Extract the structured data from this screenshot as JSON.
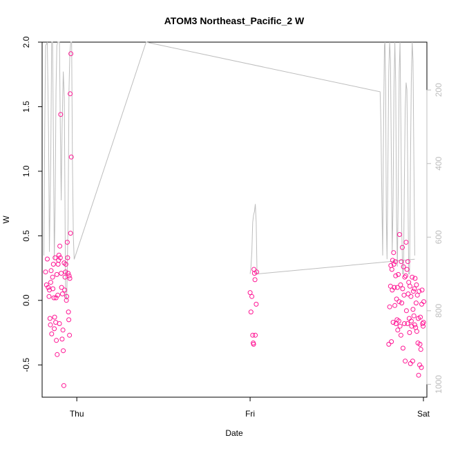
{
  "chart_data": {
    "type": "scatter",
    "title": "ATOM3 Northeast_Pacific_2 W",
    "xlabel": "Date",
    "ylabel": "W",
    "x_ticks": [
      "Thu",
      "Fri",
      "Sat"
    ],
    "x_range_days": [
      -0.2,
      2.02
    ],
    "ylim": [
      -0.75,
      2.0
    ],
    "y_ticks": [
      -0.5,
      0.0,
      0.5,
      1.0,
      1.5,
      2.0
    ],
    "y_tick_labels": [
      "-0.5",
      "0.0",
      "0.5",
      "1.0",
      "1.5",
      "2.0"
    ],
    "right_axis": {
      "ticks": [
        200,
        400,
        600,
        800,
        1000
      ],
      "tick_labels": [
        "200",
        "400",
        "600",
        "800",
        "1000"
      ],
      "range": [
        70,
        1035
      ],
      "inverted": true
    },
    "grid": false,
    "colors": {
      "points": "#ff1493",
      "depth_line": "#bdbdbd",
      "axis": "#000000",
      "right_axis": "#bdbdbd"
    },
    "series": [
      {
        "kind": "points",
        "points": [
          [
            -0.18,
            0.22
          ],
          [
            -0.175,
            0.12
          ],
          [
            -0.17,
            0.32
          ],
          [
            -0.165,
            0.1
          ],
          [
            -0.16,
            0.03
          ],
          [
            -0.158,
            0.08
          ],
          [
            -0.155,
            -0.14
          ],
          [
            -0.152,
            -0.19
          ],
          [
            -0.15,
            0.14
          ],
          [
            -0.148,
            0.23
          ],
          [
            -0.145,
            -0.26
          ],
          [
            -0.14,
            0.18
          ],
          [
            -0.138,
            0.09
          ],
          [
            -0.135,
            0.28
          ],
          [
            -0.132,
            0.02
          ],
          [
            -0.13,
            -0.22
          ],
          [
            -0.128,
            -0.13
          ],
          [
            -0.125,
            0.33
          ],
          [
            -0.122,
            -0.17
          ],
          [
            -0.12,
            0.02
          ],
          [
            -0.118,
            -0.31
          ],
          [
            -0.115,
            0.2
          ],
          [
            -0.113,
            -0.42
          ],
          [
            -0.11,
            0.04
          ],
          [
            -0.108,
            0.28
          ],
          [
            -0.105,
            0.31
          ],
          [
            -0.103,
            0.35
          ],
          [
            -0.1,
            -0.18
          ],
          [
            -0.098,
            0.42
          ],
          [
            -0.095,
            0.33
          ],
          [
            -0.093,
            1.44
          ],
          [
            -0.09,
            0.21
          ],
          [
            -0.088,
            0.1
          ],
          [
            -0.085,
            -0.3
          ],
          [
            -0.083,
            0.05
          ],
          [
            -0.08,
            -0.23
          ],
          [
            -0.078,
            -0.39
          ],
          [
            -0.075,
            -0.66
          ],
          [
            -0.073,
            0.29
          ],
          [
            -0.07,
            0.08
          ],
          [
            -0.068,
            0.18
          ],
          [
            -0.065,
            0.22
          ],
          [
            -0.063,
            0.28
          ],
          [
            -0.06,
            0.0
          ],
          [
            -0.058,
            0.03
          ],
          [
            -0.055,
            0.45
          ],
          [
            -0.053,
            0.33
          ],
          [
            -0.05,
            0.21
          ],
          [
            -0.048,
            -0.09
          ],
          [
            -0.046,
            -0.15
          ],
          [
            -0.044,
            0.19
          ],
          [
            -0.042,
            -0.27
          ],
          [
            -0.04,
            0.17
          ],
          [
            -0.038,
            1.6
          ],
          [
            -0.036,
            0.52
          ],
          [
            -0.034,
            1.91
          ],
          [
            -0.032,
            1.11
          ],
          [
            1.0,
            0.06
          ],
          [
            1.005,
            -0.09
          ],
          [
            1.01,
            0.03
          ],
          [
            1.015,
            -0.27
          ],
          [
            1.018,
            -0.33
          ],
          [
            1.02,
            -0.34
          ],
          [
            1.022,
            0.24
          ],
          [
            1.025,
            0.21
          ],
          [
            1.028,
            0.16
          ],
          [
            1.03,
            -0.27
          ],
          [
            1.035,
            -0.03
          ],
          [
            1.038,
            0.22
          ],
          [
            1.8,
            -0.34
          ],
          [
            1.805,
            -0.05
          ],
          [
            1.81,
            0.11
          ],
          [
            1.812,
            0.27
          ],
          [
            1.815,
            -0.32
          ],
          [
            1.818,
            0.24
          ],
          [
            1.82,
            0.08
          ],
          [
            1.822,
            0.31
          ],
          [
            1.825,
            -0.17
          ],
          [
            1.828,
            0.37
          ],
          [
            1.83,
            0.28
          ],
          [
            1.832,
            0.1
          ],
          [
            1.835,
            -0.04
          ],
          [
            1.838,
            0.3
          ],
          [
            1.84,
            0.19
          ],
          [
            1.842,
            -0.18
          ],
          [
            1.845,
            0.01
          ],
          [
            1.848,
            -0.15
          ],
          [
            1.85,
            0.1
          ],
          [
            1.852,
            -0.23
          ],
          [
            1.855,
            0.2
          ],
          [
            1.858,
            -0.16
          ],
          [
            1.86,
            -0.01
          ],
          [
            1.862,
            0.51
          ],
          [
            1.865,
            -0.2
          ],
          [
            1.868,
            0.12
          ],
          [
            1.87,
            -0.27
          ],
          [
            1.872,
            0.3
          ],
          [
            1.875,
            -0.02
          ],
          [
            1.878,
            0.41
          ],
          [
            1.88,
            0.09
          ],
          [
            1.882,
            -0.37
          ],
          [
            1.885,
            0.26
          ],
          [
            1.888,
            0.04
          ],
          [
            1.89,
            -0.18
          ],
          [
            1.892,
            0.18
          ],
          [
            1.895,
            -0.47
          ],
          [
            1.898,
            0.19
          ],
          [
            1.9,
            0.45
          ],
          [
            1.902,
            -0.08
          ],
          [
            1.905,
            0.24
          ],
          [
            1.908,
            -0.18
          ],
          [
            1.91,
            0.3
          ],
          [
            1.912,
            0.05
          ],
          [
            1.915,
            0.14
          ],
          [
            1.918,
            -0.14
          ],
          [
            1.92,
            -0.25
          ],
          [
            1.922,
            0.11
          ],
          [
            1.925,
            -0.49
          ],
          [
            1.928,
            0.03
          ],
          [
            1.93,
            -0.16
          ],
          [
            1.932,
            -0.2
          ],
          [
            1.935,
            0.18
          ],
          [
            1.938,
            -0.47
          ],
          [
            1.94,
            -0.07
          ],
          [
            1.942,
            0.07
          ],
          [
            1.945,
            -0.12
          ],
          [
            1.948,
            0.09
          ],
          [
            1.95,
            -0.19
          ],
          [
            1.952,
            0.17
          ],
          [
            1.955,
            -0.21
          ],
          [
            1.958,
            -0.02
          ],
          [
            1.96,
            0.12
          ],
          [
            1.962,
            -0.24
          ],
          [
            1.965,
            0.04
          ],
          [
            1.968,
            -0.33
          ],
          [
            1.97,
            -0.14
          ],
          [
            1.972,
            -0.58
          ],
          [
            1.975,
            0.07
          ],
          [
            1.978,
            -0.5
          ],
          [
            1.98,
            -0.34
          ],
          [
            1.982,
            -0.13
          ],
          [
            1.985,
            -0.38
          ],
          [
            1.988,
            -0.52
          ],
          [
            1.99,
            -0.03
          ],
          [
            1.992,
            0.08
          ],
          [
            1.995,
            -0.18
          ],
          [
            1.998,
            -0.2
          ],
          [
            2.0,
            -0.17
          ],
          [
            2.002,
            -0.01
          ]
        ]
      },
      {
        "kind": "line",
        "axis": "right",
        "points": [
          [
            -0.19,
            650
          ],
          [
            -0.185,
            300
          ],
          [
            -0.18,
            80
          ],
          [
            -0.17,
            60
          ],
          [
            -0.163,
            320
          ],
          [
            -0.158,
            640
          ],
          [
            -0.15,
            380
          ],
          [
            -0.145,
            60
          ],
          [
            -0.14,
            60
          ],
          [
            -0.135,
            330
          ],
          [
            -0.13,
            660
          ],
          [
            -0.125,
            520
          ],
          [
            -0.12,
            200
          ],
          [
            -0.115,
            80
          ],
          [
            -0.11,
            60
          ],
          [
            -0.1,
            60
          ],
          [
            -0.095,
            300
          ],
          [
            -0.09,
            500
          ],
          [
            -0.085,
            300
          ],
          [
            -0.078,
            150
          ],
          [
            -0.072,
            220
          ],
          [
            -0.065,
            760
          ],
          [
            -0.058,
            770
          ],
          [
            -0.05,
            550
          ],
          [
            -0.045,
            200
          ],
          [
            -0.04,
            100
          ],
          [
            -0.035,
            60
          ],
          [
            -0.03,
            60
          ],
          [
            -0.025,
            400
          ],
          [
            -0.02,
            600
          ],
          [
            -0.015,
            660
          ],
          [
            0.4,
            60
          ],
          [
            1.75,
            205
          ],
          [
            1.755,
            300
          ],
          [
            1.76,
            500
          ],
          [
            1.765,
            650
          ],
          [
            1.768,
            400
          ],
          [
            1.772,
            200
          ],
          [
            1.775,
            80
          ],
          [
            1.778,
            60
          ],
          [
            1.782,
            200
          ],
          [
            1.786,
            550
          ],
          [
            1.79,
            660
          ],
          [
            1.795,
            420
          ],
          [
            1.8,
            150
          ],
          [
            1.805,
            60
          ],
          [
            1.81,
            120
          ],
          [
            1.815,
            400
          ],
          [
            1.82,
            640
          ],
          [
            1.825,
            500
          ],
          [
            1.83,
            200
          ],
          [
            1.835,
            60
          ],
          [
            1.84,
            180
          ],
          [
            1.845,
            550
          ],
          [
            1.85,
            680
          ],
          [
            1.855,
            460
          ],
          [
            1.86,
            150
          ],
          [
            1.865,
            70
          ],
          [
            1.87,
            300
          ],
          [
            1.875,
            580
          ],
          [
            1.88,
            700
          ],
          [
            1.885,
            700
          ],
          [
            1.89,
            450
          ],
          [
            1.895,
            250
          ],
          [
            1.9,
            180
          ],
          [
            1.905,
            200
          ],
          [
            1.91,
            450
          ],
          [
            1.915,
            700
          ],
          [
            1.92,
            700
          ],
          [
            1.925,
            400
          ],
          [
            1.93,
            180
          ],
          [
            1.935,
            50
          ],
          [
            1.94,
            120
          ],
          [
            1.945,
            400
          ],
          [
            1.95,
            650
          ]
        ]
      },
      {
        "kind": "line",
        "axis": "right",
        "points": [
          [
            1.0,
            700
          ],
          [
            1.005,
            680
          ],
          [
            1.01,
            640
          ],
          [
            1.015,
            560
          ],
          [
            1.02,
            540
          ],
          [
            1.025,
            530
          ],
          [
            1.03,
            510
          ],
          [
            1.035,
            560
          ],
          [
            1.04,
            700
          ],
          [
            1.95,
            660
          ]
        ]
      }
    ]
  }
}
